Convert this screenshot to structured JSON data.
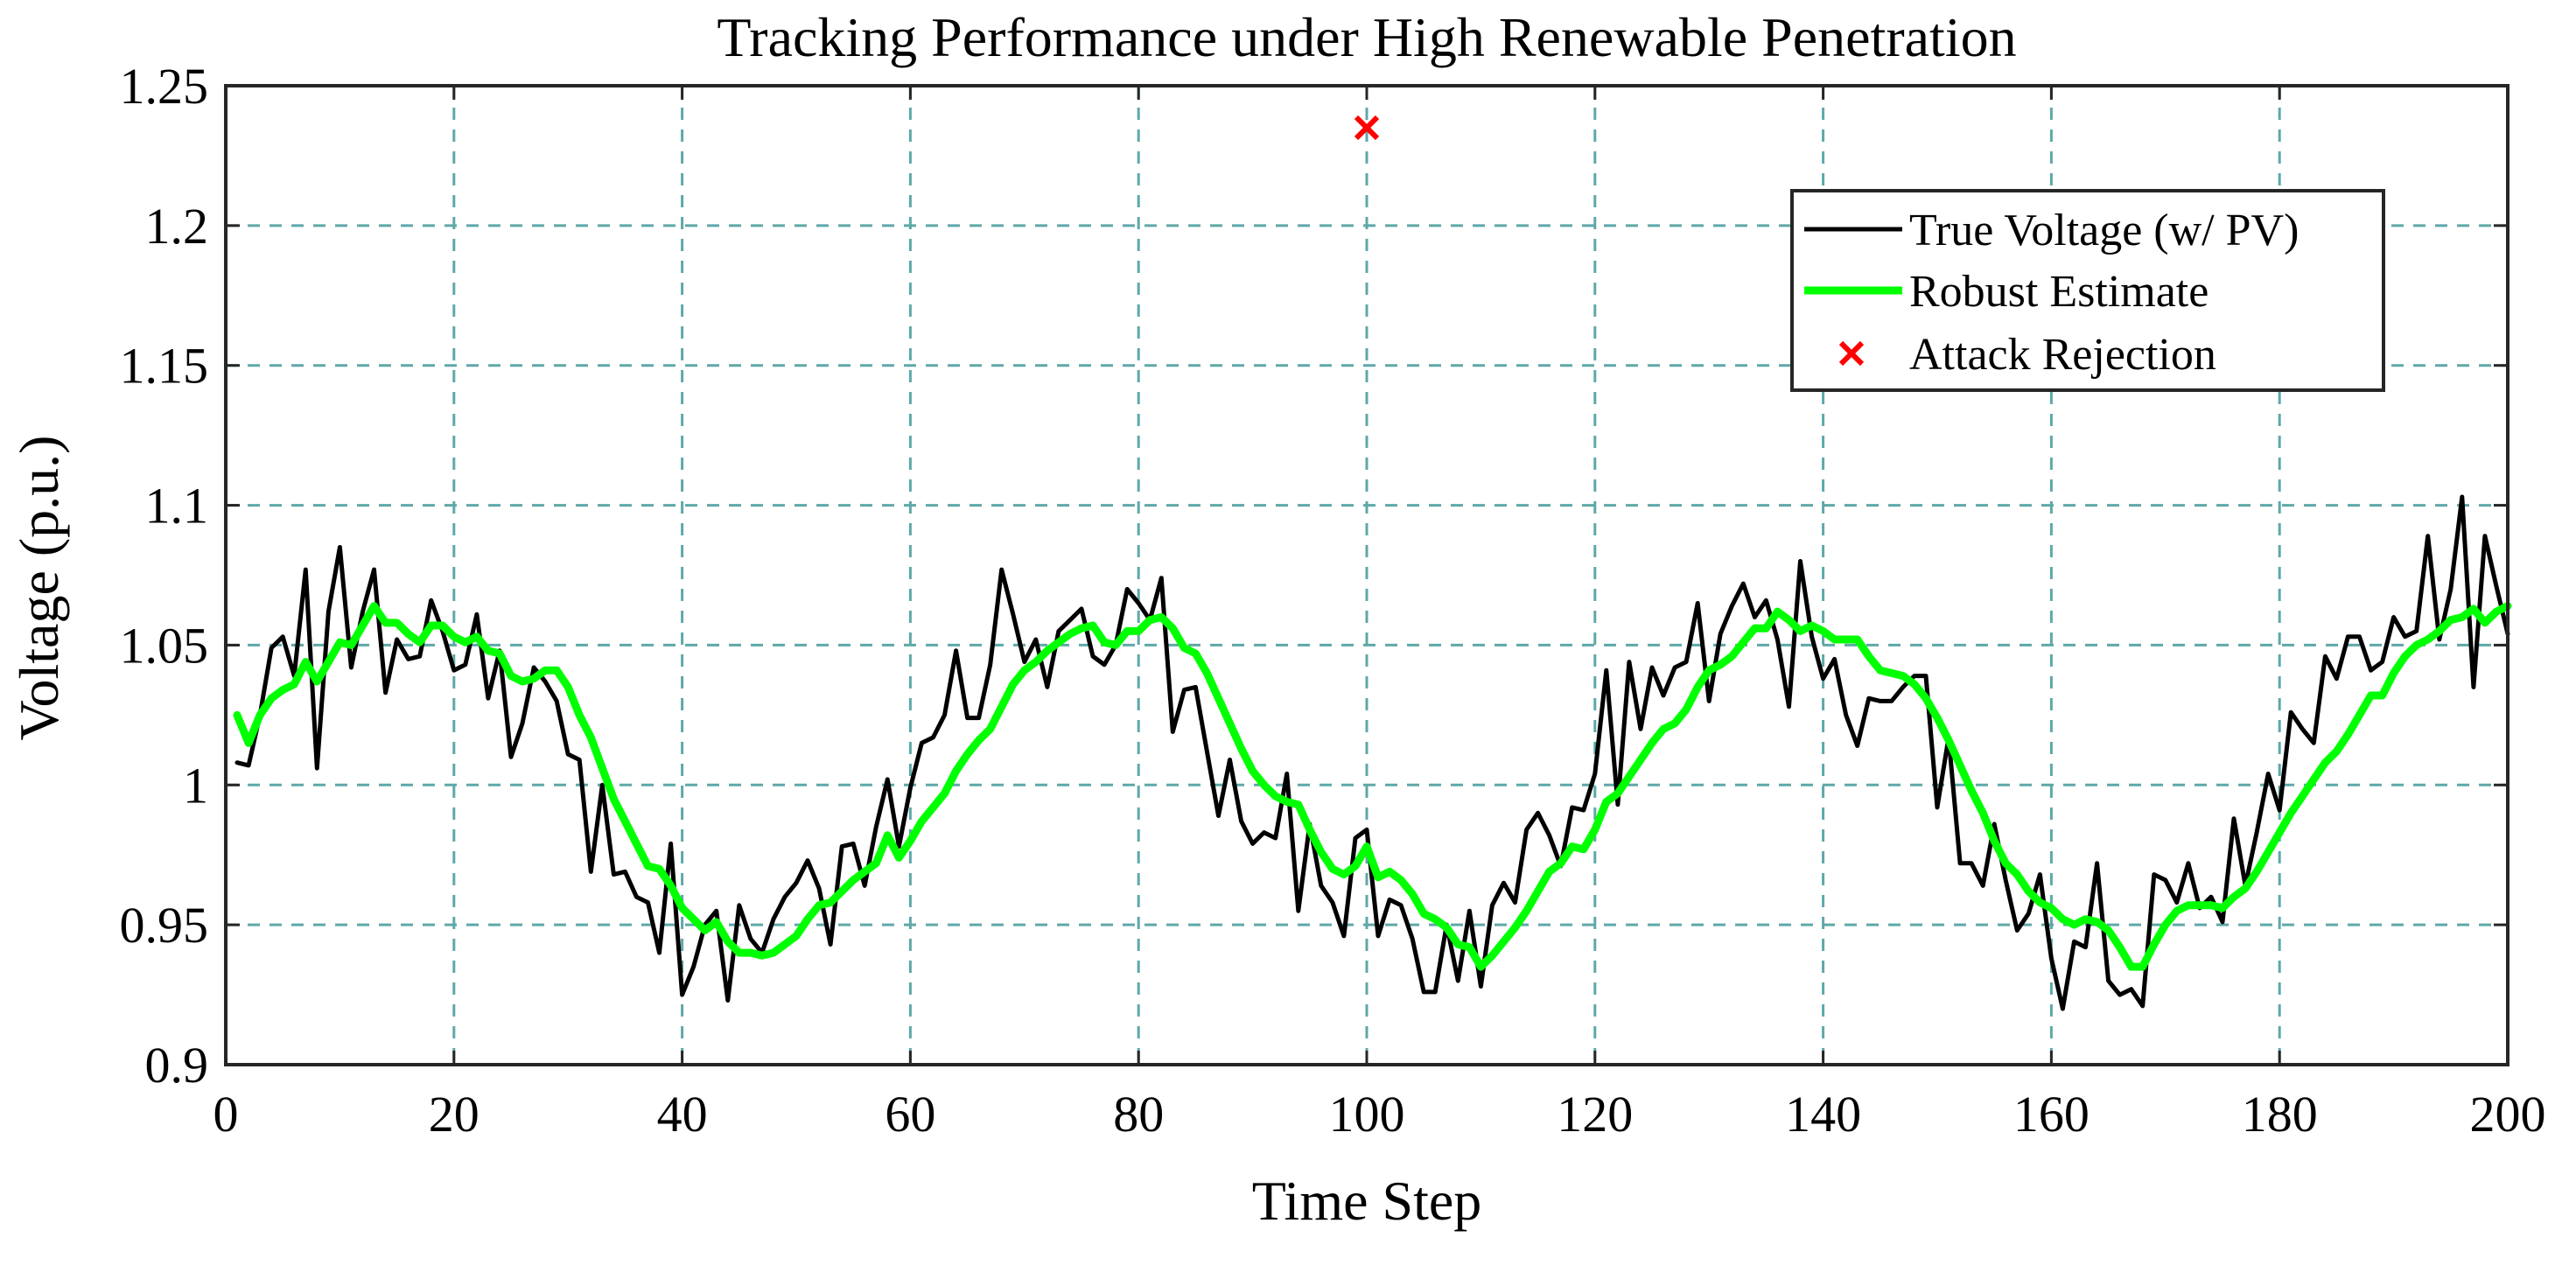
{
  "chart_data": {
    "type": "line",
    "title": "Tracking Performance under High Renewable Penetration",
    "xlabel": "Time Step",
    "ylabel": "Voltage (p.u.)",
    "xlim": [
      0,
      200
    ],
    "ylim": [
      0.9,
      1.25
    ],
    "xticks": [
      0,
      20,
      40,
      60,
      80,
      100,
      120,
      140,
      160,
      180,
      200
    ],
    "xtick_labels": [
      "0",
      "20",
      "40",
      "60",
      "80",
      "100",
      "120",
      "140",
      "160",
      "180",
      "200"
    ],
    "yticks": [
      0.9,
      0.95,
      1.0,
      1.05,
      1.1,
      1.15,
      1.2,
      1.25
    ],
    "ytick_labels": [
      "0.9",
      "0.95",
      "1",
      "1.05",
      "1.1",
      "1.15",
      "1.2",
      "1.25"
    ],
    "grid": true,
    "legend_position": "top-right",
    "series": [
      {
        "name": "True Voltage (w/ PV)",
        "kind": "line",
        "color": "#000000",
        "x": [
          1,
          2,
          3,
          4,
          5,
          6,
          7,
          8,
          9,
          10,
          11,
          12,
          13,
          14,
          15,
          16,
          17,
          18,
          19,
          20,
          21,
          22,
          23,
          24,
          25,
          26,
          27,
          28,
          29,
          30,
          31,
          32,
          33,
          34,
          35,
          36,
          37,
          38,
          39,
          40,
          41,
          42,
          43,
          44,
          45,
          46,
          47,
          48,
          49,
          50,
          51,
          52,
          53,
          54,
          55,
          56,
          57,
          58,
          59,
          60,
          61,
          62,
          63,
          64,
          65,
          66,
          67,
          68,
          69,
          70,
          71,
          72,
          73,
          74,
          75,
          76,
          77,
          78,
          79,
          80,
          81,
          82,
          83,
          84,
          85,
          86,
          87,
          88,
          89,
          90,
          91,
          92,
          93,
          94,
          95,
          96,
          97,
          98,
          99,
          100,
          101,
          102,
          103,
          104,
          105,
          106,
          107,
          108,
          109,
          110,
          111,
          112,
          113,
          114,
          115,
          116,
          117,
          118,
          119,
          120,
          121,
          122,
          123,
          124,
          125,
          126,
          127,
          128,
          129,
          130,
          131,
          132,
          133,
          134,
          135,
          136,
          137,
          138,
          139,
          140,
          141,
          142,
          143,
          144,
          145,
          146,
          147,
          148,
          149,
          150,
          151,
          152,
          153,
          154,
          155,
          156,
          157,
          158,
          159,
          160,
          161,
          162,
          163,
          164,
          165,
          166,
          167,
          168,
          169,
          170,
          171,
          172,
          173,
          174,
          175,
          176,
          177,
          178,
          179,
          180,
          181,
          182,
          183,
          184,
          185,
          186,
          187,
          188,
          189,
          190,
          191,
          192,
          193,
          194,
          195,
          196,
          197,
          198,
          199,
          200
        ],
        "y": [
          1.008,
          1.007,
          1.025,
          1.049,
          1.053,
          1.039,
          1.077,
          1.006,
          1.062,
          1.085,
          1.042,
          1.062,
          1.077,
          1.033,
          1.052,
          1.045,
          1.046,
          1.066,
          1.055,
          1.041,
          1.043,
          1.061,
          1.031,
          1.048,
          1.01,
          1.022,
          1.042,
          1.037,
          1.03,
          1.011,
          1.009,
          0.969,
          1.0,
          0.968,
          0.969,
          0.96,
          0.958,
          0.94,
          0.979,
          0.925,
          0.935,
          0.95,
          0.955,
          0.923,
          0.957,
          0.945,
          0.94,
          0.952,
          0.96,
          0.965,
          0.973,
          0.963,
          0.943,
          0.978,
          0.979,
          0.964,
          0.985,
          1.002,
          0.978,
          0.999,
          1.015,
          1.017,
          1.025,
          1.048,
          1.024,
          1.024,
          1.043,
          1.077,
          1.061,
          1.044,
          1.052,
          1.035,
          1.055,
          1.059,
          1.063,
          1.046,
          1.043,
          1.05,
          1.07,
          1.065,
          1.059,
          1.074,
          1.019,
          1.034,
          1.035,
          1.012,
          0.989,
          1.009,
          0.987,
          0.979,
          0.983,
          0.981,
          1.004,
          0.955,
          0.986,
          0.964,
          0.958,
          0.946,
          0.981,
          0.984,
          0.946,
          0.959,
          0.957,
          0.945,
          0.926,
          0.926,
          0.95,
          0.93,
          0.955,
          0.928,
          0.957,
          0.965,
          0.958,
          0.984,
          0.99,
          0.982,
          0.971,
          0.992,
          0.991,
          1.004,
          1.041,
          0.993,
          1.044,
          1.02,
          1.042,
          1.032,
          1.042,
          1.044,
          1.065,
          1.03,
          1.054,
          1.064,
          1.072,
          1.06,
          1.066,
          1.052,
          1.028,
          1.08,
          1.053,
          1.038,
          1.045,
          1.025,
          1.014,
          1.031,
          1.03,
          1.03,
          1.035,
          1.039,
          1.039,
          0.992,
          1.017,
          0.972,
          0.972,
          0.964,
          0.986,
          0.966,
          0.948,
          0.954,
          0.968,
          0.938,
          0.92,
          0.944,
          0.942,
          0.972,
          0.93,
          0.925,
          0.927,
          0.921,
          0.968,
          0.966,
          0.958,
          0.972,
          0.956,
          0.96,
          0.951,
          0.988,
          0.964,
          0.983,
          1.004,
          0.991,
          1.026,
          1.02,
          1.015,
          1.046,
          1.038,
          1.053,
          1.053,
          1.041,
          1.044,
          1.06,
          1.053,
          1.055,
          1.089,
          1.052,
          1.07,
          1.103,
          1.035,
          1.089,
          1.071,
          1.054
        ]
      },
      {
        "name": "Robust Estimate",
        "kind": "line",
        "color": "#00ff00",
        "x": [
          1,
          2,
          3,
          4,
          5,
          6,
          7,
          8,
          9,
          10,
          11,
          12,
          13,
          14,
          15,
          16,
          17,
          18,
          19,
          20,
          21,
          22,
          23,
          24,
          25,
          26,
          27,
          28,
          29,
          30,
          31,
          32,
          33,
          34,
          35,
          36,
          37,
          38,
          39,
          40,
          41,
          42,
          43,
          44,
          45,
          46,
          47,
          48,
          49,
          50,
          51,
          52,
          53,
          54,
          55,
          56,
          57,
          58,
          59,
          60,
          61,
          62,
          63,
          64,
          65,
          66,
          67,
          68,
          69,
          70,
          71,
          72,
          73,
          74,
          75,
          76,
          77,
          78,
          79,
          80,
          81,
          82,
          83,
          84,
          85,
          86,
          87,
          88,
          89,
          90,
          91,
          92,
          93,
          94,
          95,
          96,
          97,
          98,
          99,
          100,
          101,
          102,
          103,
          104,
          105,
          106,
          107,
          108,
          109,
          110,
          111,
          112,
          113,
          114,
          115,
          116,
          117,
          118,
          119,
          120,
          121,
          122,
          123,
          124,
          125,
          126,
          127,
          128,
          129,
          130,
          131,
          132,
          133,
          134,
          135,
          136,
          137,
          138,
          139,
          140,
          141,
          142,
          143,
          144,
          145,
          146,
          147,
          148,
          149,
          150,
          151,
          152,
          153,
          154,
          155,
          156,
          157,
          158,
          159,
          160,
          161,
          162,
          163,
          164,
          165,
          166,
          167,
          168,
          169,
          170,
          171,
          172,
          173,
          174,
          175,
          176,
          177,
          178,
          179,
          180,
          181,
          182,
          183,
          184,
          185,
          186,
          187,
          188,
          189,
          190,
          191,
          192,
          193,
          194,
          195,
          196,
          197,
          198,
          199,
          200
        ],
        "y": [
          1.025,
          1.015,
          1.025,
          1.031,
          1.034,
          1.036,
          1.044,
          1.037,
          1.044,
          1.051,
          1.05,
          1.057,
          1.064,
          1.058,
          1.058,
          1.054,
          1.051,
          1.057,
          1.057,
          1.053,
          1.051,
          1.053,
          1.048,
          1.047,
          1.039,
          1.037,
          1.038,
          1.041,
          1.041,
          1.035,
          1.025,
          1.017,
          1.006,
          0.995,
          0.987,
          0.979,
          0.971,
          0.97,
          0.964,
          0.956,
          0.952,
          0.948,
          0.951,
          0.944,
          0.94,
          0.94,
          0.939,
          0.94,
          0.943,
          0.946,
          0.952,
          0.957,
          0.958,
          0.962,
          0.966,
          0.969,
          0.972,
          0.982,
          0.974,
          0.98,
          0.987,
          0.992,
          0.997,
          1.005,
          1.011,
          1.016,
          1.02,
          1.028,
          1.036,
          1.041,
          1.044,
          1.048,
          1.051,
          1.054,
          1.056,
          1.057,
          1.051,
          1.05,
          1.055,
          1.055,
          1.059,
          1.06,
          1.056,
          1.049,
          1.047,
          1.04,
          1.031,
          1.022,
          1.013,
          1.005,
          1.0,
          0.996,
          0.994,
          0.993,
          0.984,
          0.976,
          0.97,
          0.968,
          0.971,
          0.978,
          0.967,
          0.969,
          0.966,
          0.961,
          0.954,
          0.952,
          0.949,
          0.943,
          0.942,
          0.935,
          0.939,
          0.944,
          0.949,
          0.955,
          0.962,
          0.969,
          0.972,
          0.978,
          0.977,
          0.984,
          0.994,
          0.997,
          1.003,
          1.009,
          1.015,
          1.02,
          1.022,
          1.027,
          1.035,
          1.041,
          1.043,
          1.046,
          1.051,
          1.056,
          1.056,
          1.062,
          1.059,
          1.055,
          1.057,
          1.055,
          1.052,
          1.052,
          1.052,
          1.046,
          1.041,
          1.04,
          1.039,
          1.036,
          1.031,
          1.024,
          1.016,
          1.007,
          0.998,
          0.99,
          0.98,
          0.972,
          0.968,
          0.962,
          0.958,
          0.956,
          0.952,
          0.95,
          0.952,
          0.951,
          0.948,
          0.942,
          0.935,
          0.935,
          0.943,
          0.95,
          0.955,
          0.957,
          0.957,
          0.957,
          0.956,
          0.96,
          0.963,
          0.969,
          0.976,
          0.983,
          0.99,
          0.996,
          1.002,
          1.008,
          1.012,
          1.018,
          1.025,
          1.032,
          1.032,
          1.04,
          1.046,
          1.05,
          1.052,
          1.055,
          1.059,
          1.06,
          1.063,
          1.058,
          1.062,
          1.064
        ]
      },
      {
        "name": "Attack Rejection",
        "kind": "marker",
        "marker": "x",
        "color": "#ff0000",
        "x": [
          100
        ],
        "y": [
          1.235
        ]
      }
    ]
  }
}
